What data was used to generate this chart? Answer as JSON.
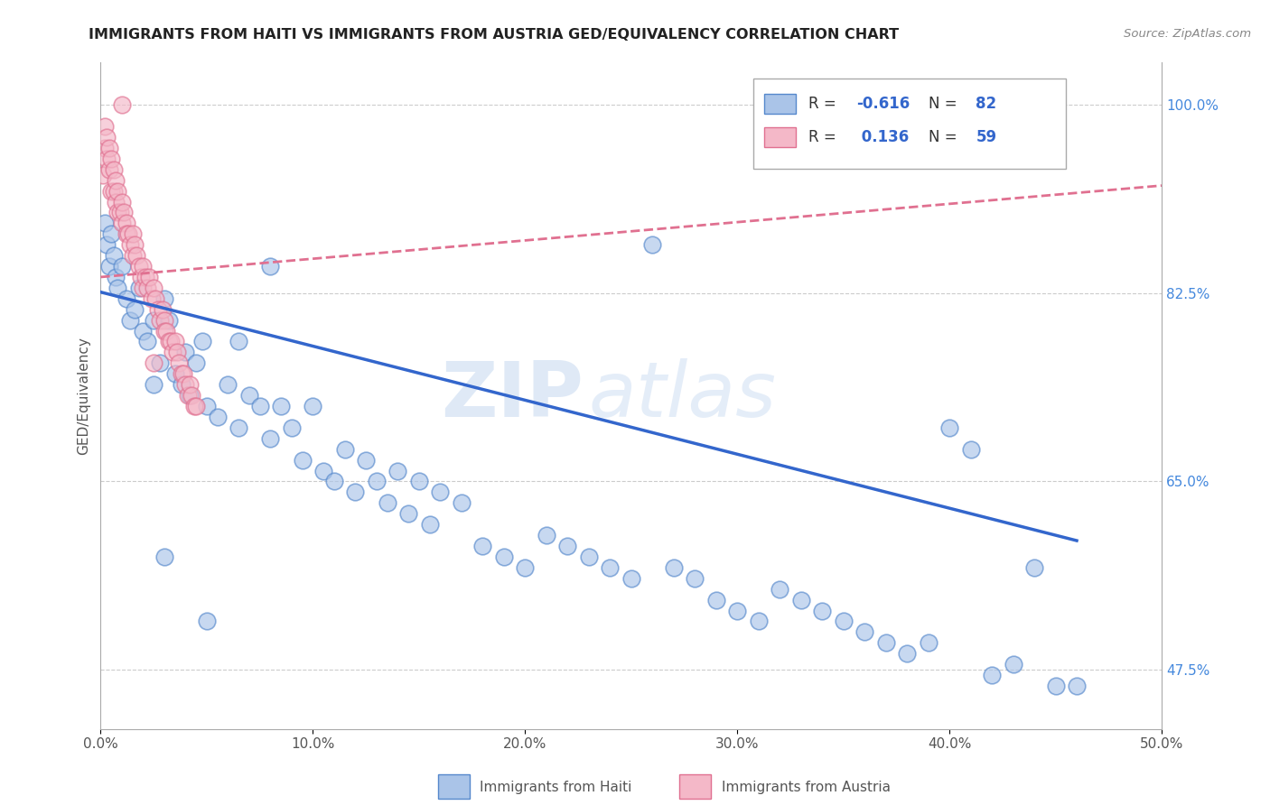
{
  "title": "IMMIGRANTS FROM HAITI VS IMMIGRANTS FROM AUSTRIA GED/EQUIVALENCY CORRELATION CHART",
  "source": "Source: ZipAtlas.com",
  "ylabel": "GED/Equivalency",
  "xlim": [
    0.0,
    0.5
  ],
  "ylim": [
    0.42,
    1.04
  ],
  "xticks": [
    0.0,
    0.1,
    0.2,
    0.3,
    0.4,
    0.5
  ],
  "xticklabels": [
    "0.0%",
    "10.0%",
    "20.0%",
    "30.0%",
    "40.0%",
    "50.0%"
  ],
  "ytick_vals": [
    0.475,
    0.65,
    0.825,
    1.0
  ],
  "yticklabels": [
    "47.5%",
    "65.0%",
    "82.5%",
    "100.0%"
  ],
  "haiti_color": "#aac4e8",
  "austria_color": "#f4b8c8",
  "haiti_edge_color": "#5588cc",
  "austria_edge_color": "#e07090",
  "haiti_line_color": "#3366cc",
  "austria_line_color": "#e07090",
  "haiti_R": -0.616,
  "haiti_N": 82,
  "austria_R": 0.136,
  "austria_N": 59,
  "legend_label_haiti": "Immigrants from Haiti",
  "legend_label_austria": "Immigrants from Austria",
  "watermark_zip": "ZIP",
  "watermark_atlas": "atlas",
  "haiti_x": [
    0.002,
    0.003,
    0.004,
    0.005,
    0.006,
    0.007,
    0.008,
    0.01,
    0.012,
    0.014,
    0.016,
    0.018,
    0.02,
    0.022,
    0.025,
    0.028,
    0.03,
    0.032,
    0.035,
    0.038,
    0.04,
    0.042,
    0.045,
    0.048,
    0.05,
    0.055,
    0.06,
    0.065,
    0.07,
    0.075,
    0.08,
    0.085,
    0.09,
    0.095,
    0.1,
    0.105,
    0.11,
    0.115,
    0.12,
    0.125,
    0.13,
    0.135,
    0.14,
    0.145,
    0.15,
    0.155,
    0.16,
    0.17,
    0.18,
    0.19,
    0.2,
    0.21,
    0.22,
    0.23,
    0.24,
    0.25,
    0.26,
    0.27,
    0.28,
    0.29,
    0.3,
    0.31,
    0.32,
    0.33,
    0.34,
    0.35,
    0.36,
    0.37,
    0.38,
    0.39,
    0.4,
    0.41,
    0.42,
    0.43,
    0.44,
    0.45,
    0.46,
    0.025,
    0.03,
    0.05,
    0.065,
    0.08
  ],
  "haiti_y": [
    0.89,
    0.87,
    0.85,
    0.88,
    0.86,
    0.84,
    0.83,
    0.85,
    0.82,
    0.8,
    0.81,
    0.83,
    0.79,
    0.78,
    0.8,
    0.76,
    0.82,
    0.8,
    0.75,
    0.74,
    0.77,
    0.73,
    0.76,
    0.78,
    0.72,
    0.71,
    0.74,
    0.7,
    0.73,
    0.72,
    0.69,
    0.72,
    0.7,
    0.67,
    0.72,
    0.66,
    0.65,
    0.68,
    0.64,
    0.67,
    0.65,
    0.63,
    0.66,
    0.62,
    0.65,
    0.61,
    0.64,
    0.63,
    0.59,
    0.58,
    0.57,
    0.6,
    0.59,
    0.58,
    0.57,
    0.56,
    0.87,
    0.57,
    0.56,
    0.54,
    0.53,
    0.52,
    0.55,
    0.54,
    0.53,
    0.52,
    0.51,
    0.5,
    0.49,
    0.5,
    0.7,
    0.68,
    0.47,
    0.48,
    0.57,
    0.46,
    0.46,
    0.74,
    0.58,
    0.52,
    0.78,
    0.85
  ],
  "austria_x": [
    0.001,
    0.002,
    0.002,
    0.003,
    0.003,
    0.004,
    0.004,
    0.005,
    0.005,
    0.006,
    0.006,
    0.007,
    0.007,
    0.008,
    0.008,
    0.009,
    0.01,
    0.01,
    0.011,
    0.012,
    0.012,
    0.013,
    0.014,
    0.015,
    0.015,
    0.016,
    0.017,
    0.018,
    0.019,
    0.02,
    0.02,
    0.021,
    0.022,
    0.023,
    0.024,
    0.025,
    0.026,
    0.027,
    0.028,
    0.029,
    0.03,
    0.03,
    0.031,
    0.032,
    0.033,
    0.034,
    0.035,
    0.036,
    0.037,
    0.038,
    0.039,
    0.04,
    0.041,
    0.042,
    0.043,
    0.044,
    0.045,
    0.01,
    0.025
  ],
  "austria_y": [
    0.935,
    0.98,
    0.96,
    0.97,
    0.95,
    0.96,
    0.94,
    0.95,
    0.92,
    0.94,
    0.92,
    0.93,
    0.91,
    0.92,
    0.9,
    0.9,
    0.91,
    0.89,
    0.9,
    0.89,
    0.88,
    0.88,
    0.87,
    0.88,
    0.86,
    0.87,
    0.86,
    0.85,
    0.84,
    0.85,
    0.83,
    0.84,
    0.83,
    0.84,
    0.82,
    0.83,
    0.82,
    0.81,
    0.8,
    0.81,
    0.8,
    0.79,
    0.79,
    0.78,
    0.78,
    0.77,
    0.78,
    0.77,
    0.76,
    0.75,
    0.75,
    0.74,
    0.73,
    0.74,
    0.73,
    0.72,
    0.72,
    1.0,
    0.76
  ],
  "haiti_line_x": [
    0.0,
    0.46
  ],
  "haiti_line_y": [
    0.826,
    0.595
  ],
  "austria_line_x": [
    0.0,
    0.5
  ],
  "austria_line_y": [
    0.84,
    0.925
  ]
}
